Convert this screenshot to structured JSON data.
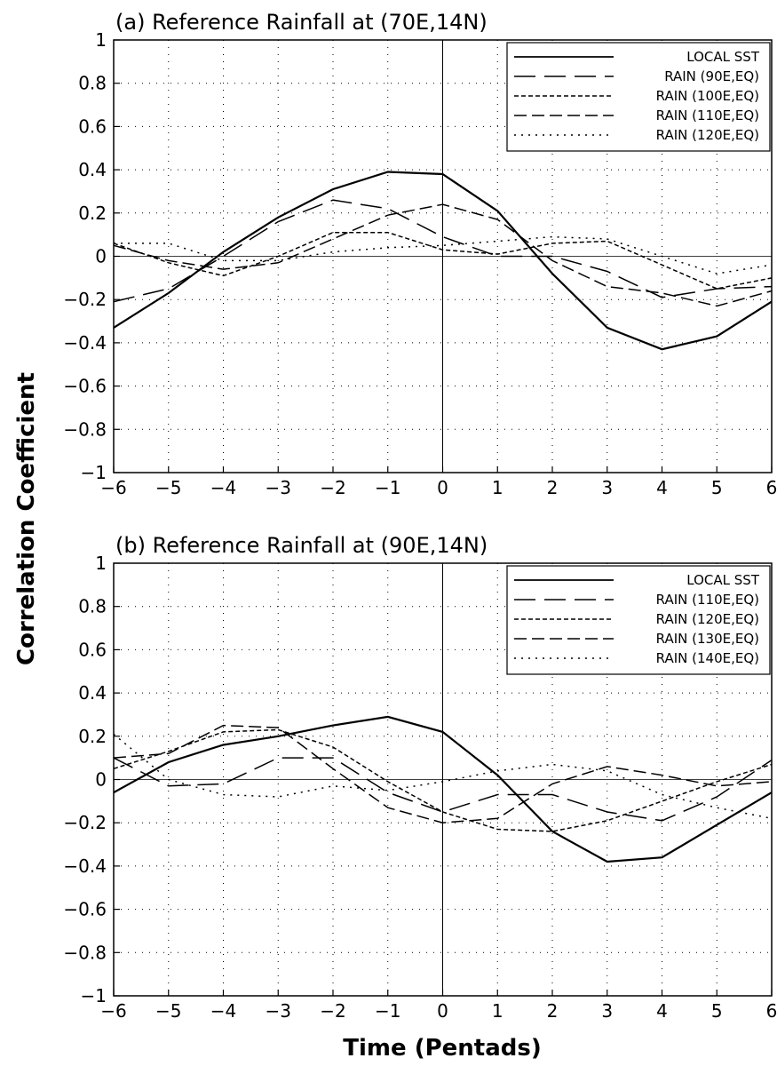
{
  "figure": {
    "ylabel": "Correlation Coefficient",
    "xlabel": "Time (Pentads)"
  },
  "chart_data": [
    {
      "type": "line",
      "title": "(a) Reference Rainfall at (70E,14N)",
      "x": [
        -6,
        -5,
        -4,
        -3,
        -2,
        -1,
        0,
        1,
        2,
        3,
        4,
        5,
        6
      ],
      "xlim": [
        -6,
        6
      ],
      "ylim": [
        -1,
        1
      ],
      "xticks": [
        "-6",
        "-5",
        "-4",
        "-3",
        "-2",
        "-1",
        "0",
        "1",
        "2",
        "3",
        "4",
        "5",
        "6"
      ],
      "yticks": [
        "-1",
        "-0.8",
        "-0.6",
        "-0.4",
        "-0.2",
        "0",
        "0.2",
        "0.4",
        "0.6",
        "0.8",
        "1"
      ],
      "grid": true,
      "legend_position": "top-right",
      "series": [
        {
          "name": "LOCAL SST",
          "style": "solid",
          "values": [
            -0.33,
            -0.17,
            0.02,
            0.18,
            0.31,
            0.39,
            0.38,
            0.21,
            -0.08,
            -0.33,
            -0.43,
            -0.37,
            -0.21
          ]
        },
        {
          "name": "RAIN (90E,EQ)",
          "style": "longdash",
          "values": [
            -0.21,
            -0.15,
            0.0,
            0.16,
            0.26,
            0.22,
            0.09,
            0.0,
            0.0,
            -0.07,
            -0.19,
            -0.15,
            -0.14
          ]
        },
        {
          "name": "RAIN (100E,EQ)",
          "style": "shortdash",
          "values": [
            0.06,
            -0.03,
            -0.09,
            0.0,
            0.11,
            0.11,
            0.03,
            0.01,
            0.06,
            0.07,
            -0.04,
            -0.15,
            -0.1
          ]
        },
        {
          "name": "RAIN (110E,EQ)",
          "style": "dash",
          "values": [
            0.05,
            -0.02,
            -0.06,
            -0.03,
            0.08,
            0.19,
            0.24,
            0.17,
            -0.02,
            -0.14,
            -0.17,
            -0.23,
            -0.16
          ]
        },
        {
          "name": "RAIN (120E,EQ)",
          "style": "dot",
          "values": [
            0.06,
            0.06,
            -0.02,
            -0.02,
            0.02,
            0.04,
            0.05,
            0.07,
            0.09,
            0.08,
            0.0,
            -0.08,
            -0.04
          ]
        }
      ]
    },
    {
      "type": "line",
      "title": "(b) Reference Rainfall at (90E,14N)",
      "x": [
        -6,
        -5,
        -4,
        -3,
        -2,
        -1,
        0,
        1,
        2,
        3,
        4,
        5,
        6
      ],
      "xlim": [
        -6,
        6
      ],
      "ylim": [
        -1,
        1
      ],
      "xticks": [
        "-6",
        "-5",
        "-4",
        "-3",
        "-2",
        "-1",
        "0",
        "1",
        "2",
        "3",
        "4",
        "5",
        "6"
      ],
      "yticks": [
        "-1",
        "-0.8",
        "-0.6",
        "-0.4",
        "-0.2",
        "0",
        "0.2",
        "0.4",
        "0.6",
        "0.8",
        "1"
      ],
      "grid": true,
      "legend_position": "top-right",
      "series": [
        {
          "name": "LOCAL SST",
          "style": "solid",
          "values": [
            -0.06,
            0.08,
            0.16,
            0.2,
            0.25,
            0.29,
            0.22,
            0.02,
            -0.24,
            -0.38,
            -0.36,
            -0.21,
            -0.06
          ]
        },
        {
          "name": "RAIN (110E,EQ)",
          "style": "longdash",
          "values": [
            0.1,
            -0.03,
            -0.02,
            0.1,
            0.1,
            -0.06,
            -0.15,
            -0.07,
            -0.07,
            -0.15,
            -0.19,
            -0.08,
            0.09
          ]
        },
        {
          "name": "RAIN (120E,EQ)",
          "style": "shortdash",
          "values": [
            0.05,
            0.13,
            0.22,
            0.23,
            0.15,
            -0.01,
            -0.15,
            -0.23,
            -0.24,
            -0.19,
            -0.1,
            -0.01,
            0.07
          ]
        },
        {
          "name": "RAIN (130E,EQ)",
          "style": "dash",
          "values": [
            0.1,
            0.12,
            0.25,
            0.24,
            0.05,
            -0.13,
            -0.2,
            -0.18,
            -0.02,
            0.06,
            0.02,
            -0.03,
            -0.01
          ]
        },
        {
          "name": "RAIN (140E,EQ)",
          "style": "dot",
          "values": [
            0.21,
            0.0,
            -0.07,
            -0.08,
            -0.03,
            -0.05,
            -0.01,
            0.04,
            0.07,
            0.04,
            -0.07,
            -0.13,
            -0.18
          ]
        }
      ]
    }
  ]
}
